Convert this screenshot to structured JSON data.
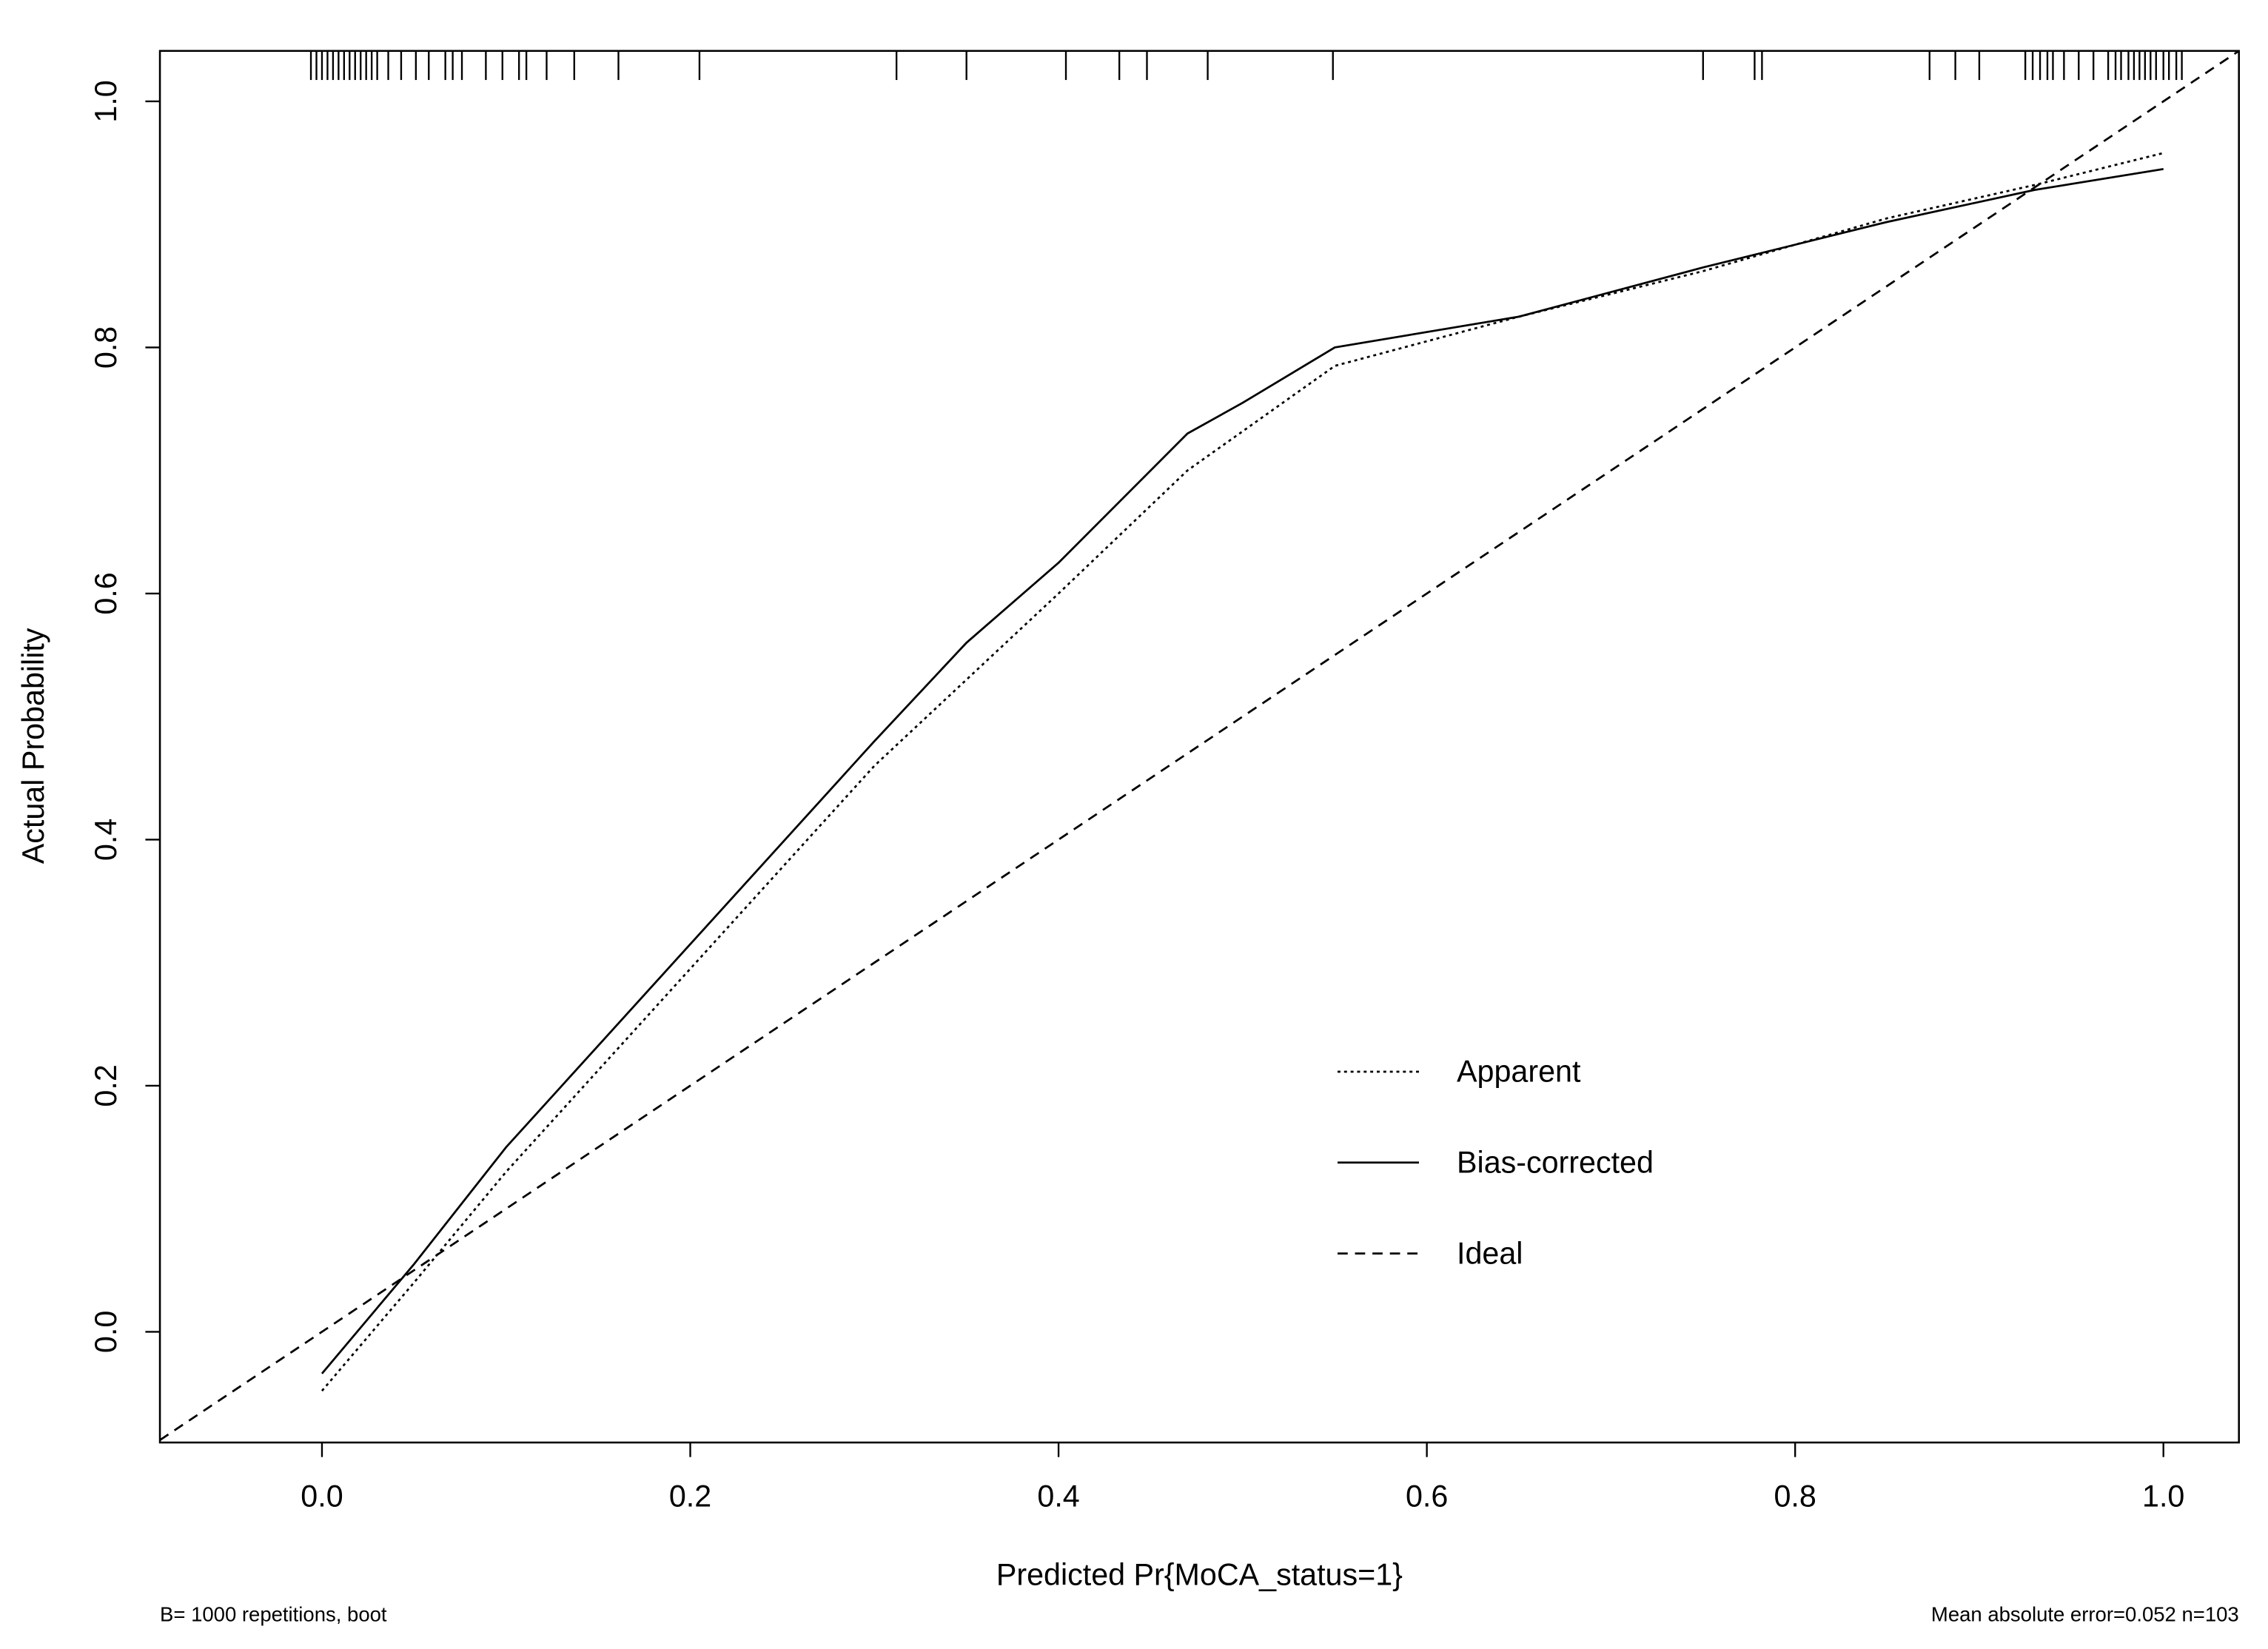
{
  "chart_data": {
    "type": "line",
    "xlabel": "Predicted Pr{MoCA_status=1}",
    "ylabel": "Actual Probability",
    "footnote_left": "B= 1000 repetitions, boot",
    "footnote_right": "Mean absolute error=0.052 n=103",
    "xlim": [
      -0.088,
      1.041
    ],
    "ylim": [
      -0.09,
      1.041
    ],
    "xticks": [
      {
        "value": 0,
        "label": "0.0"
      },
      0.2,
      0.4,
      0.6,
      0.8,
      {
        "value": 1,
        "label": "1.0"
      }
    ],
    "yticks": [
      {
        "value": 0,
        "label": "0.0"
      },
      0.2,
      0.4,
      0.6,
      0.8,
      {
        "value": 1,
        "label": "1.0"
      }
    ],
    "series": [
      {
        "name": "Apparent",
        "color": "#000000",
        "dash": "dotted",
        "x": [
          0,
          0.05,
          0.1,
          0.2,
          0.3,
          0.4,
          0.47,
          0.55,
          0.65,
          0.75,
          0.85,
          0.93,
          1.0
        ],
        "values": [
          -0.048,
          0.04,
          0.13,
          0.295,
          0.46,
          0.6,
          0.7,
          0.785,
          0.825,
          0.862,
          0.905,
          0.932,
          0.958
        ]
      },
      {
        "name": "Bias-corrected",
        "color": "#000000",
        "dash": "solid",
        "x": [
          0,
          0.05,
          0.1,
          0.2,
          0.3,
          0.35,
          0.4,
          0.47,
          0.5,
          0.55,
          0.65,
          0.75,
          0.85,
          0.93,
          1.0
        ],
        "values": [
          -0.034,
          0.055,
          0.15,
          0.315,
          0.48,
          0.56,
          0.625,
          0.73,
          0.755,
          0.8,
          0.825,
          0.865,
          0.902,
          0.928,
          0.945
        ]
      },
      {
        "name": "Ideal",
        "color": "#000000",
        "dash": "dashed",
        "x": [
          -0.088,
          1.041
        ],
        "values": [
          -0.088,
          1.041
        ]
      }
    ],
    "rug": [
      -0.006,
      -0.003,
      0,
      0.003,
      0.006,
      0.009,
      0.012,
      0.015,
      0.018,
      0.021,
      0.024,
      0.027,
      0.03,
      0.036,
      0.043,
      0.051,
      0.058,
      0.067,
      0.071,
      0.076,
      0.089,
      0.098,
      0.107,
      0.111,
      0.122,
      0.137,
      0.161,
      0.205,
      0.312,
      0.35,
      0.404,
      0.433,
      0.448,
      0.481,
      0.549,
      0.75,
      0.778,
      0.782,
      0.873,
      0.887,
      0.9,
      0.925,
      0.929,
      0.933,
      0.937,
      0.94,
      0.946,
      0.954,
      0.962,
      0.97,
      0.974,
      0.977,
      0.981,
      0.984,
      0.987,
      0.99,
      0.993,
      0.996,
      1.0,
      1.003,
      1.007,
      1.01
    ],
    "legend": "center-right"
  }
}
